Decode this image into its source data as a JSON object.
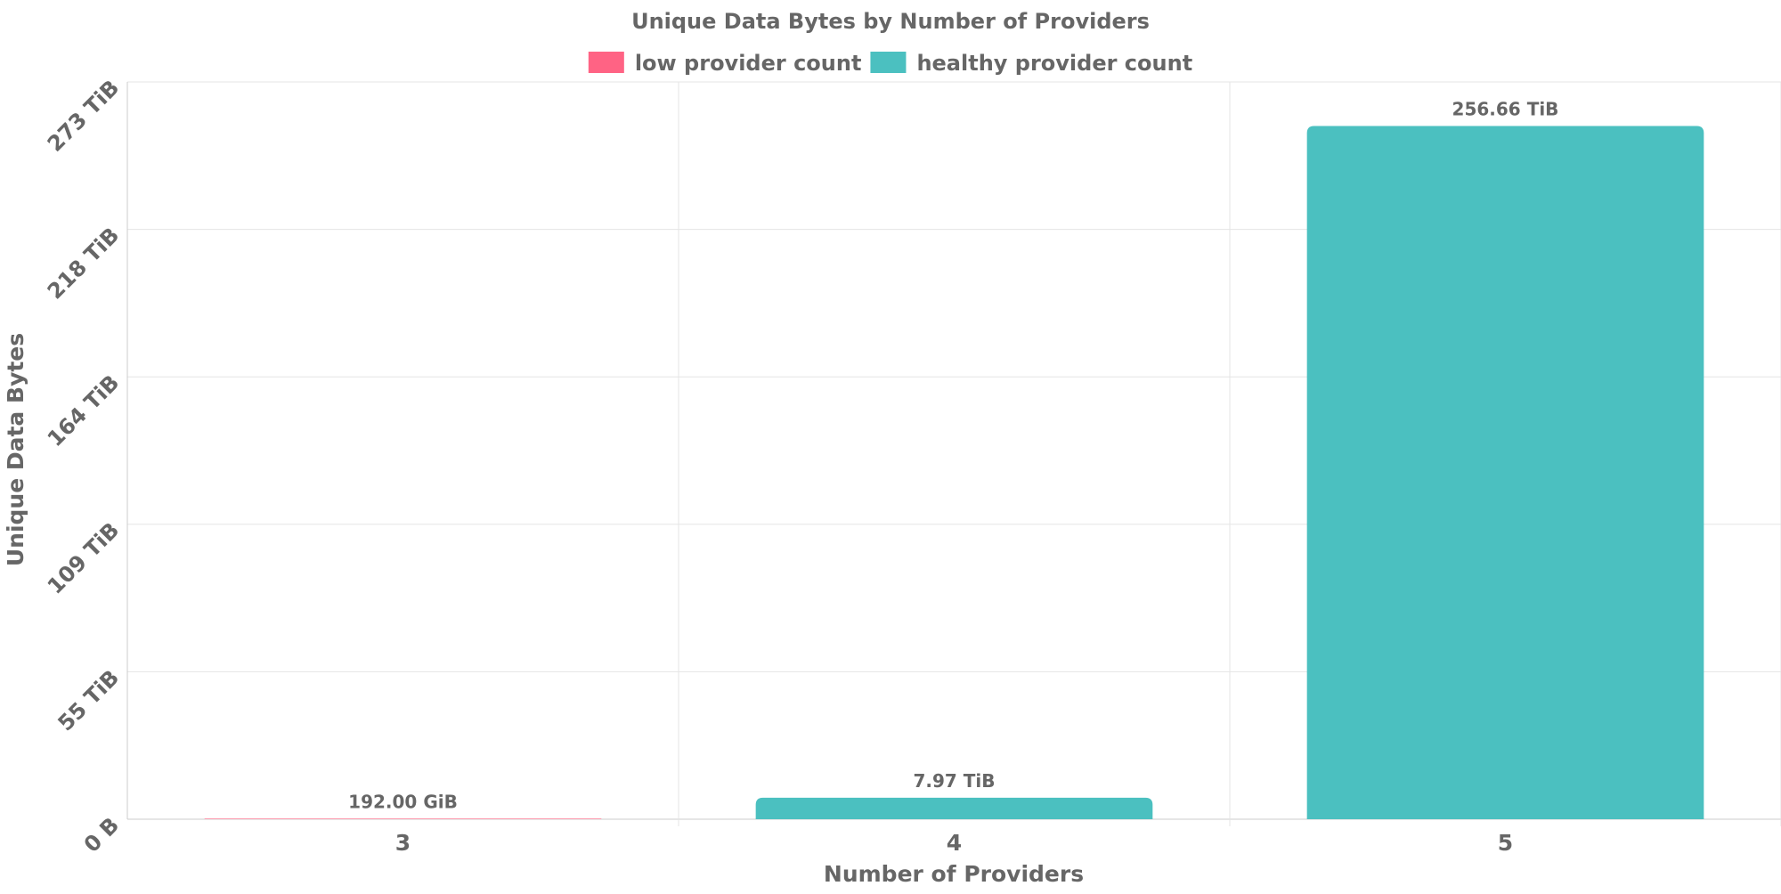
{
  "chart_data": {
    "type": "bar",
    "title": "Unique Data Bytes by Number of Providers",
    "xlabel": "Number of Providers",
    "ylabel": "Unique Data Bytes",
    "categories": [
      "3",
      "4",
      "5"
    ],
    "series": [
      {
        "name": "low provider count",
        "color": "#ff6384",
        "values": [
          0.1875,
          null,
          null
        ]
      },
      {
        "name": "healthy provider count",
        "color": "#4bc0c0",
        "values": [
          null,
          7.97,
          256.66
        ]
      }
    ],
    "value_unit": "TiB",
    "data_labels": [
      "192.00 GiB",
      "7.97 TiB",
      "256.66 TiB"
    ],
    "ylim": [
      0,
      273
    ],
    "y_ticks": [
      {
        "value": 0,
        "label": "0 B"
      },
      {
        "value": 54.6,
        "label": "55 TiB"
      },
      {
        "value": 109.2,
        "label": "109 TiB"
      },
      {
        "value": 163.8,
        "label": "164 TiB"
      },
      {
        "value": 218.4,
        "label": "218 TiB"
      },
      {
        "value": 273,
        "label": "273 TiB"
      }
    ],
    "legend_position": "top-center",
    "grid": true
  }
}
